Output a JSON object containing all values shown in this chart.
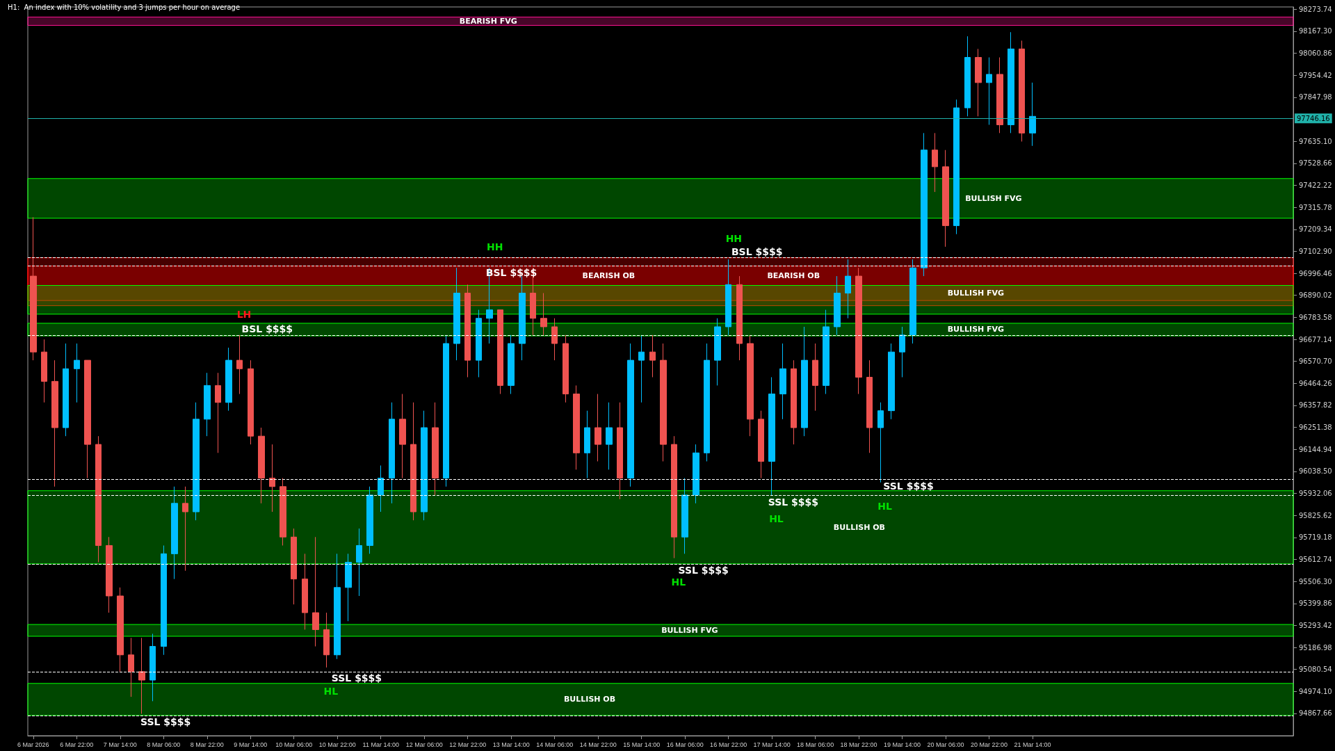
{
  "chart_data": {
    "type": "candlestick",
    "title": "H1:  An index with 10% volatility and 3 jumps per hour on average",
    "x": [
      "2026-03-06T06:00",
      "2026-03-06T10:00",
      "2026-03-06T14:00",
      "2026-03-06T18:00",
      "2026-03-06T22:00",
      "2026-03-07T02:00",
      "2026-03-07T06:00",
      "2026-03-07T10:00",
      "2026-03-07T14:00",
      "2026-03-07T18:00",
      "2026-03-07T22:00",
      "2026-03-08T02:00",
      "2026-03-08T06:00",
      "2026-03-08T10:00",
      "2026-03-08T14:00",
      "2026-03-08T18:00",
      "2026-03-08T22:00",
      "2026-03-09T02:00",
      "2026-03-09T06:00",
      "2026-03-09T10:00",
      "2026-03-09T14:00",
      "2026-03-09T18:00",
      "2026-03-09T22:00",
      "2026-03-10T02:00",
      "2026-03-10T06:00",
      "2026-03-10T10:00",
      "2026-03-10T14:00",
      "2026-03-10T18:00",
      "2026-03-10T22:00",
      "2026-03-11T02:00",
      "2026-03-11T06:00",
      "2026-03-11T10:00",
      "2026-03-11T14:00",
      "2026-03-11T18:00",
      "2026-03-11T22:00",
      "2026-03-12T02:00",
      "2026-03-12T06:00",
      "2026-03-12T10:00",
      "2026-03-12T14:00",
      "2026-03-12T18:00",
      "2026-03-12T22:00",
      "2026-03-13T02:00",
      "2026-03-13T06:00",
      "2026-03-13T10:00",
      "2026-03-13T14:00",
      "2026-03-13T18:00",
      "2026-03-13T22:00",
      "2026-03-14T02:00",
      "2026-03-14T06:00",
      "2026-03-14T10:00",
      "2026-03-14T14:00",
      "2026-03-14T18:00",
      "2026-03-14T22:00",
      "2026-03-15T02:00",
      "2026-03-15T06:00",
      "2026-03-15T10:00",
      "2026-03-15T14:00",
      "2026-03-15T18:00",
      "2026-03-15T22:00",
      "2026-03-16T02:00",
      "2026-03-16T06:00",
      "2026-03-16T10:00",
      "2026-03-16T14:00",
      "2026-03-16T18:00",
      "2026-03-16T22:00",
      "2026-03-17T02:00",
      "2026-03-17T06:00",
      "2026-03-17T10:00",
      "2026-03-17T14:00",
      "2026-03-17T18:00",
      "2026-03-17T22:00",
      "2026-03-18T02:00",
      "2026-03-18T06:00",
      "2026-03-18T10:00",
      "2026-03-18T14:00",
      "2026-03-18T18:00",
      "2026-03-18T22:00",
      "2026-03-19T02:00",
      "2026-03-19T06:00",
      "2026-03-19T10:00",
      "2026-03-19T14:00",
      "2026-03-19T18:00",
      "2026-03-19T22:00",
      "2026-03-20T02:00",
      "2026-03-20T06:00",
      "2026-03-20T10:00",
      "2026-03-20T14:00",
      "2026-03-20T18:00",
      "2026-03-20T22:00",
      "2026-03-21T02:00",
      "2026-03-21T06:00",
      "2026-03-21T10:00",
      "2026-03-21T14:00"
    ],
    "ohlc": [
      [
        96983,
        97268,
        96576,
        96616
      ],
      [
        96616,
        96677,
        96372,
        96474
      ],
      [
        96474,
        96576,
        95965,
        96250
      ],
      [
        96250,
        96657,
        96209,
        96535
      ],
      [
        96535,
        96657,
        96372,
        96576
      ],
      [
        96576,
        96576,
        96006,
        96169
      ],
      [
        96169,
        96209,
        95599,
        95680
      ],
      [
        95680,
        95721,
        95355,
        95436
      ],
      [
        95436,
        95477,
        95070,
        95151
      ],
      [
        95151,
        95233,
        94948,
        95070
      ],
      [
        95070,
        95233,
        94866,
        95029
      ],
      [
        95029,
        95253,
        94927,
        95192
      ],
      [
        95192,
        95680,
        95151,
        95640
      ],
      [
        95640,
        95965,
        95518,
        95884
      ],
      [
        95884,
        95965,
        95558,
        95843
      ],
      [
        95843,
        96372,
        95802,
        96291
      ],
      [
        96291,
        96515,
        96209,
        96454
      ],
      [
        96454,
        96515,
        96128,
        96372
      ],
      [
        96372,
        96637,
        96332,
        96576
      ],
      [
        96576,
        96698,
        96413,
        96535
      ],
      [
        96535,
        96576,
        96169,
        96209
      ],
      [
        96209,
        96250,
        95884,
        96006
      ],
      [
        96006,
        96169,
        95843,
        95965
      ],
      [
        95965,
        96006,
        95680,
        95721
      ],
      [
        95721,
        95762,
        95395,
        95518
      ],
      [
        95518,
        95640,
        95273,
        95355
      ],
      [
        95355,
        95721,
        95192,
        95273
      ],
      [
        95273,
        95355,
        95090,
        95151
      ],
      [
        95151,
        95640,
        95131,
        95477
      ],
      [
        95477,
        95640,
        95314,
        95599
      ],
      [
        95599,
        95762,
        95436,
        95680
      ],
      [
        95680,
        95965,
        95640,
        95924
      ],
      [
        95924,
        96067,
        95843,
        96006
      ],
      [
        96006,
        96372,
        95884,
        96291
      ],
      [
        96291,
        96413,
        96006,
        96169
      ],
      [
        96169,
        96372,
        95802,
        95843
      ],
      [
        95843,
        96332,
        95802,
        96250
      ],
      [
        96250,
        96372,
        95924,
        96006
      ],
      [
        96006,
        96698,
        95965,
        96657
      ],
      [
        96657,
        97023,
        96576,
        96901
      ],
      [
        96901,
        96942,
        96494,
        96576
      ],
      [
        96576,
        96820,
        96494,
        96779
      ],
      [
        96779,
        97023,
        96657,
        96820
      ],
      [
        96820,
        96820,
        96413,
        96454
      ],
      [
        96454,
        96698,
        96413,
        96657
      ],
      [
        96657,
        96983,
        96576,
        96901
      ],
      [
        96901,
        97023,
        96698,
        96779
      ],
      [
        96779,
        96901,
        96698,
        96738
      ],
      [
        96738,
        96779,
        96576,
        96657
      ],
      [
        96657,
        96698,
        96372,
        96413
      ],
      [
        96413,
        96454,
        96047,
        96128
      ],
      [
        96128,
        96332,
        96006,
        96250
      ],
      [
        96250,
        96413,
        96087,
        96169
      ],
      [
        96169,
        96372,
        96047,
        96250
      ],
      [
        96250,
        96372,
        95904,
        96006
      ],
      [
        96006,
        96657,
        95965,
        96576
      ],
      [
        96576,
        96698,
        96372,
        96616
      ],
      [
        96616,
        96698,
        96494,
        96576
      ],
      [
        96576,
        96657,
        96087,
        96169
      ],
      [
        96169,
        96209,
        95619,
        95721
      ],
      [
        95721,
        96006,
        95640,
        95924
      ],
      [
        95924,
        96169,
        95884,
        96128
      ],
      [
        96128,
        96657,
        96087,
        96576
      ],
      [
        96576,
        96779,
        96454,
        96738
      ],
      [
        96738,
        97064,
        96698,
        96942
      ],
      [
        96942,
        96983,
        96576,
        96657
      ],
      [
        96657,
        96698,
        96209,
        96291
      ],
      [
        96291,
        96332,
        96006,
        96087
      ],
      [
        96087,
        96494,
        95924,
        96413
      ],
      [
        96413,
        96657,
        96291,
        96535
      ],
      [
        96535,
        96576,
        96169,
        96250
      ],
      [
        96250,
        96738,
        96209,
        96576
      ],
      [
        96576,
        96657,
        96332,
        96454
      ],
      [
        96454,
        96820,
        96413,
        96738
      ],
      [
        96738,
        96983,
        96698,
        96901
      ],
      [
        96901,
        97064,
        96779,
        96983
      ],
      [
        96983,
        97023,
        96413,
        96494
      ],
      [
        96494,
        96576,
        96128,
        96250
      ],
      [
        96250,
        96372,
        95985,
        96332
      ],
      [
        96332,
        96657,
        96291,
        96616
      ],
      [
        96616,
        96738,
        96494,
        96698
      ],
      [
        96698,
        97064,
        96657,
        97023
      ],
      [
        97023,
        97675,
        96983,
        97593
      ],
      [
        97593,
        97675,
        97390,
        97512
      ],
      [
        97512,
        97593,
        97125,
        97227
      ],
      [
        97227,
        97837,
        97186,
        97797
      ],
      [
        97797,
        98143,
        97756,
        98041
      ],
      [
        98041,
        98082,
        97756,
        97919
      ],
      [
        97919,
        98041,
        97715,
        97959
      ],
      [
        97959,
        98041,
        97675,
        97715
      ],
      [
        97715,
        98163,
        97675,
        98082
      ],
      [
        98082,
        98122,
        97634,
        97675
      ],
      [
        97675,
        97919,
        97613,
        97756
      ]
    ],
    "colors": [
      "#ef5350",
      "#ef5350",
      "#ef5350",
      "#00bfff",
      "#00bfff",
      "#ef5350",
      "#ef5350",
      "#ef5350",
      "#ef5350",
      "#ef5350",
      "#ef5350",
      "#00bfff",
      "#00bfff",
      "#00bfff",
      "#ef5350",
      "#00bfff",
      "#00bfff",
      "#ef5350",
      "#00bfff",
      "#ef5350",
      "#ef5350",
      "#ef5350",
      "#ef5350",
      "#ef5350",
      "#ef5350",
      "#ef5350",
      "#ef5350",
      "#ef5350",
      "#00bfff",
      "#00bfff",
      "#00bfff",
      "#00bfff",
      "#00bfff",
      "#00bfff",
      "#ef5350",
      "#ef5350",
      "#00bfff",
      "#ef5350",
      "#00bfff",
      "#00bfff",
      "#ef5350",
      "#00bfff",
      "#00bfff",
      "#ef5350",
      "#00bfff",
      "#00bfff",
      "#ef5350",
      "#ef5350",
      "#ef5350",
      "#ef5350",
      "#ef5350",
      "#00bfff",
      "#ef5350",
      "#00bfff",
      "#ef5350",
      "#00bfff",
      "#00bfff",
      "#ef5350",
      "#ef5350",
      "#ef5350",
      "#00bfff",
      "#00bfff",
      "#00bfff",
      "#00bfff",
      "#00bfff",
      "#ef5350",
      "#ef5350",
      "#ef5350",
      "#00bfff",
      "#00bfff",
      "#ef5350",
      "#00bfff",
      "#ef5350",
      "#00bfff",
      "#00bfff",
      "#00bfff",
      "#ef5350",
      "#ef5350",
      "#00bfff",
      "#00bfff",
      "#00bfff",
      "#00bfff",
      "#00bfff",
      "#ef5350",
      "#ef5350",
      "#00bfff",
      "#00bfff",
      "#ef5350",
      "#00bfff",
      "#ef5350",
      "#00bfff",
      "#ef5350",
      "#00bfff"
    ],
    "xlim": [
      "2026-03-06T04:00",
      "2026-03-25T14:00"
    ],
    "xticks": [
      {
        "value": "2026-03-06T06:00",
        "label": "6 Mar 2026"
      },
      {
        "value": "2026-03-06T22:00",
        "label": "6 Mar 22:00"
      },
      {
        "value": "2026-03-07T14:00",
        "label": "7 Mar 14:00"
      },
      {
        "value": "2026-03-08T06:00",
        "label": "8 Mar 06:00"
      },
      {
        "value": "2026-03-08T22:00",
        "label": "8 Mar 22:00"
      },
      {
        "value": "2026-03-09T14:00",
        "label": "9 Mar 14:00"
      },
      {
        "value": "2026-03-10T06:00",
        "label": "10 Mar 06:00"
      },
      {
        "value": "2026-03-10T22:00",
        "label": "10 Mar 22:00"
      },
      {
        "value": "2026-03-11T14:00",
        "label": "11 Mar 14:00"
      },
      {
        "value": "2026-03-12T06:00",
        "label": "12 Mar 06:00"
      },
      {
        "value": "2026-03-12T22:00",
        "label": "12 Mar 22:00"
      },
      {
        "value": "2026-03-13T14:00",
        "label": "13 Mar 14:00"
      },
      {
        "value": "2026-03-14T06:00",
        "label": "14 Mar 06:00"
      },
      {
        "value": "2026-03-14T22:00",
        "label": "14 Mar 22:00"
      },
      {
        "value": "2026-03-15T14:00",
        "label": "15 Mar 14:00"
      },
      {
        "value": "2026-03-16T06:00",
        "label": "16 Mar 06:00"
      },
      {
        "value": "2026-03-16T22:00",
        "label": "16 Mar 22:00"
      },
      {
        "value": "2026-03-17T14:00",
        "label": "17 Mar 14:00"
      },
      {
        "value": "2026-03-18T06:00",
        "label": "18 Mar 06:00"
      },
      {
        "value": "2026-03-18T22:00",
        "label": "18 Mar 22:00"
      },
      {
        "value": "2026-03-19T14:00",
        "label": "19 Mar 14:00"
      },
      {
        "value": "2026-03-20T06:00",
        "label": "20 Mar 06:00"
      },
      {
        "value": "2026-03-20T22:00",
        "label": "20 Mar 22:00"
      },
      {
        "value": "2026-03-21T14:00",
        "label": "21 Mar 14:00"
      }
    ],
    "ylim": [
      94760,
      98285
    ],
    "yticks": [
      {
        "value": 94867.66,
        "label": "94867.66"
      },
      {
        "value": 94974.1,
        "label": "94974.10"
      },
      {
        "value": 95080.54,
        "label": "95080.54"
      },
      {
        "value": 95186.98,
        "label": "95186.98"
      },
      {
        "value": 95293.42,
        "label": "95293.42"
      },
      {
        "value": 95399.86,
        "label": "95399.86"
      },
      {
        "value": 95506.3,
        "label": "95506.30"
      },
      {
        "value": 95612.74,
        "label": "95612.74"
      },
      {
        "value": 95719.18,
        "label": "95719.18"
      },
      {
        "value": 95825.62,
        "label": "95825.62"
      },
      {
        "value": 95932.06,
        "label": "95932.06"
      },
      {
        "value": 96038.5,
        "label": "96038.50"
      },
      {
        "value": 96144.94,
        "label": "96144.94"
      },
      {
        "value": 96251.38,
        "label": "96251.38"
      },
      {
        "value": 96357.82,
        "label": "96357.82"
      },
      {
        "value": 96464.26,
        "label": "96464.26"
      },
      {
        "value": 96570.7,
        "label": "96570.70"
      },
      {
        "value": 96677.14,
        "label": "96677.14"
      },
      {
        "value": 96783.58,
        "label": "96783.58"
      },
      {
        "value": 96890.02,
        "label": "96890.02"
      },
      {
        "value": 96996.46,
        "label": "96996.46"
      },
      {
        "value": 97102.9,
        "label": "97102.90"
      },
      {
        "value": 97209.34,
        "label": "97209.34"
      },
      {
        "value": 97315.78,
        "label": "97315.78"
      },
      {
        "value": 97422.22,
        "label": "97422.22"
      },
      {
        "value": 97528.66,
        "label": "97528.66"
      },
      {
        "value": 97635.1,
        "label": "97635.10"
      },
      {
        "value": 97847.98,
        "label": "97847.98"
      },
      {
        "value": 97954.42,
        "label": "97954.42"
      },
      {
        "value": 98060.86,
        "label": "98060.86"
      },
      {
        "value": 98167.3,
        "label": "98167.30"
      },
      {
        "value": 98273.74,
        "label": "98273.74"
      }
    ],
    "bands": [
      {
        "axis": "y",
        "from": 98196,
        "to": 98236,
        "label": "BEARISH FVG",
        "color": "#ff1493"
      },
      {
        "axis": "y",
        "from": 97263,
        "to": 97455,
        "label": "BULLISH FVG",
        "color": "#00ff00"
      },
      {
        "axis": "y",
        "from": 96840,
        "to": 97032,
        "label": "BEARISH OB",
        "color": "#ff0000"
      },
      {
        "axis": "y",
        "from": 96865,
        "to": 97072,
        "label": "BEARISH OB",
        "color": "#ff0000"
      },
      {
        "axis": "y",
        "from": 96799,
        "to": 96938,
        "label": "BULLISH FVG",
        "color": "#00ff00"
      },
      {
        "axis": "y",
        "from": 96694,
        "to": 96755,
        "label": "BULLISH FVG",
        "color": "#00ff00"
      },
      {
        "axis": "y",
        "from": 95591,
        "to": 95945,
        "label": "BULLISH OB",
        "color": "#00ff00"
      },
      {
        "axis": "y",
        "from": 95241,
        "to": 95298,
        "label": "BULLISH FVG",
        "color": "#00ff00"
      },
      {
        "axis": "y",
        "from": 94858,
        "to": 95013,
        "label": "BULLISH OB",
        "color": "#00ff00"
      }
    ],
    "ref_lines": [
      {
        "axis": "y",
        "value": 97746.16,
        "label": "97746.16",
        "color": "#20b2aa",
        "line_style": "solid"
      },
      {
        "axis": "y",
        "value": 96698,
        "label": "BSL $$$$",
        "color": "#ffffff",
        "line_style": "dashed"
      },
      {
        "axis": "y",
        "value": 97032,
        "label": "BSL $$$$",
        "color": "#ffffff",
        "line_style": "dashed"
      },
      {
        "axis": "y",
        "value": 97072,
        "label": "BSL $$$$",
        "color": "#ffffff",
        "line_style": "dashed"
      },
      {
        "axis": "y",
        "value": 95070,
        "label": "SSL $$$$",
        "color": "#ffffff",
        "line_style": "dashed"
      },
      {
        "axis": "y",
        "value": 95999,
        "label": "SSL $$$$",
        "color": "#ffffff",
        "line_style": "dashed"
      },
      {
        "axis": "y",
        "value": 95922,
        "label": "SSL $$$$",
        "color": "#ffffff",
        "line_style": "dashed"
      },
      {
        "axis": "y",
        "value": 95591,
        "label": "SSL $$$$",
        "color": "#ffffff",
        "line_style": "dashed"
      },
      {
        "axis": "y",
        "value": 94858,
        "label": "SSL $$$$",
        "color": "#ffffff",
        "line_style": "dashed"
      }
    ],
    "annotations": [
      {
        "text": "LH",
        "x": "2026-03-09T10:00",
        "y": 96698
      },
      {
        "text": "HH",
        "x": "2026-03-13T06:00",
        "y": 97023
      },
      {
        "text": "HH",
        "x": "2026-03-16T22:00",
        "y": 97064
      },
      {
        "text": "HL",
        "x": "2026-03-10T18:00",
        "y": 95090
      },
      {
        "text": "HL",
        "x": "2026-03-16T02:00",
        "y": 95619
      },
      {
        "text": "HL",
        "x": "2026-03-17T14:00",
        "y": 95924
      },
      {
        "text": "HL",
        "x": "2026-03-19T06:00",
        "y": 95985
      }
    ]
  }
}
